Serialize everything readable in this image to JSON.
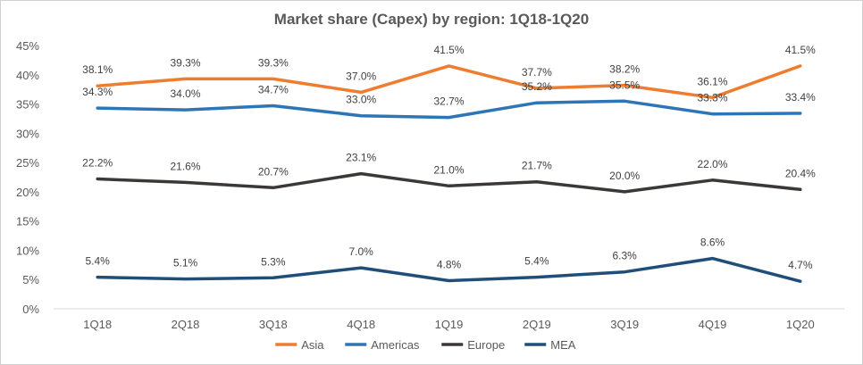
{
  "chart_data": {
    "type": "line",
    "title": "Market share (Capex) by region: 1Q18-1Q20",
    "xlabel": "",
    "ylabel": "",
    "categories": [
      "1Q18",
      "2Q18",
      "3Q18",
      "4Q18",
      "1Q19",
      "2Q19",
      "3Q19",
      "4Q19",
      "1Q20"
    ],
    "ylim": [
      0,
      45
    ],
    "yticks": [
      "0%",
      "5%",
      "10%",
      "15%",
      "20%",
      "25%",
      "30%",
      "35%",
      "40%",
      "45%"
    ],
    "grid": false,
    "legend_position": "bottom",
    "series": [
      {
        "name": "Asia",
        "color": "#ED7D31",
        "values": [
          38.1,
          39.3,
          39.3,
          37.0,
          41.5,
          37.7,
          38.2,
          36.1,
          41.5
        ],
        "labels": [
          "38.1%",
          "39.3%",
          "39.3%",
          "37.0%",
          "41.5%",
          "37.7%",
          "38.2%",
          "36.1%",
          "41.5%"
        ]
      },
      {
        "name": "Americas",
        "color": "#2E75B6",
        "values": [
          34.3,
          34.0,
          34.7,
          33.0,
          32.7,
          35.2,
          35.5,
          33.3,
          33.4
        ],
        "labels": [
          "34.3%",
          "34.0%",
          "34.7%",
          "33.0%",
          "32.7%",
          "35.2%",
          "35.5%",
          "33.3%",
          "33.4%"
        ]
      },
      {
        "name": "Europe",
        "color": "#3B3838",
        "values": [
          22.2,
          21.6,
          20.7,
          23.1,
          21.0,
          21.7,
          20.0,
          22.0,
          20.4
        ],
        "labels": [
          "22.2%",
          "21.6%",
          "20.7%",
          "23.1%",
          "21.0%",
          "21.7%",
          "20.0%",
          "22.0%",
          "20.4%"
        ]
      },
      {
        "name": "MEA",
        "color": "#1F4E79",
        "values": [
          5.4,
          5.1,
          5.3,
          7.0,
          4.8,
          5.4,
          6.3,
          8.6,
          4.7
        ],
        "labels": [
          "5.4%",
          "5.1%",
          "5.3%",
          "7.0%",
          "4.8%",
          "5.4%",
          "6.3%",
          "8.6%",
          "4.7%"
        ]
      }
    ]
  }
}
